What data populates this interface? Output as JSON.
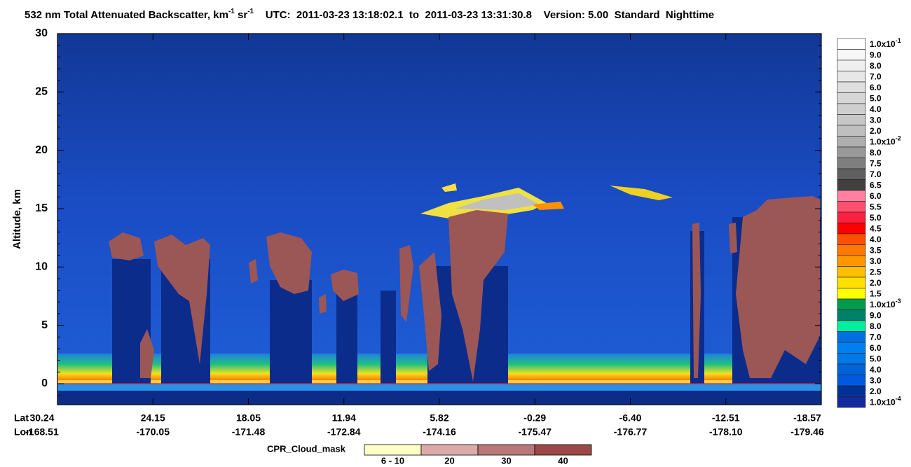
{
  "chart_data": {
    "type": "curtain",
    "title_segments": [
      {
        "text": "532 nm Total Attenuated Backscatter, km",
        "sup": false
      },
      {
        "text": "-1",
        "sup": true
      },
      {
        "text": " sr",
        "sup": false
      },
      {
        "text": "-1",
        "sup": true
      },
      {
        "text": "    UTC:  2011-03-23 13:18:02.1  to  2011-03-23 13:31:30.8    Version: 5.00  Standard  Nighttime",
        "sup": false
      }
    ],
    "ylabel": "Altitude, km",
    "ylim": [
      -1.8,
      30
    ],
    "yticks": [
      0,
      5,
      10,
      15,
      20,
      25,
      30
    ],
    "lat_title": "Lat",
    "lon_title": "Lon",
    "lat_labels": [
      "30.24",
      "24.15",
      "18.05",
      "11.94",
      "5.82",
      "-0.29",
      "-6.40",
      "-12.51",
      "-18.57"
    ],
    "lon_labels": [
      "-168.51",
      "-170.05",
      "-171.48",
      "-172.84",
      "-174.16",
      "-175.47",
      "-176.77",
      "-178.10",
      "-179.46"
    ],
    "colorbar": {
      "labels": [
        {
          "text": "1.0x10",
          "sup": "-1"
        },
        {
          "text": "9.0"
        },
        {
          "text": "8.0"
        },
        {
          "text": "7.0"
        },
        {
          "text": "6.0"
        },
        {
          "text": "5.0"
        },
        {
          "text": "4.0"
        },
        {
          "text": "3.0"
        },
        {
          "text": "2.0"
        },
        {
          "text": "1.0x10",
          "sup": "-2"
        },
        {
          "text": "8.0"
        },
        {
          "text": "7.5"
        },
        {
          "text": "7.0"
        },
        {
          "text": "6.5"
        },
        {
          "text": "6.0"
        },
        {
          "text": "5.5"
        },
        {
          "text": "5.0"
        },
        {
          "text": "4.5"
        },
        {
          "text": "4.0"
        },
        {
          "text": "3.5"
        },
        {
          "text": "3.0"
        },
        {
          "text": "2.5"
        },
        {
          "text": "2.0"
        },
        {
          "text": "1.5"
        },
        {
          "text": "1.0x10",
          "sup": "-3"
        },
        {
          "text": "9.0"
        },
        {
          "text": "8.0"
        },
        {
          "text": "7.0"
        },
        {
          "text": "6.0"
        },
        {
          "text": "5.0"
        },
        {
          "text": "4.0"
        },
        {
          "text": "3.0"
        },
        {
          "text": "2.0"
        },
        {
          "text": "1.0x10",
          "sup": "-4"
        }
      ],
      "colors": [
        "#ffffff",
        "#f7f7f7",
        "#efefef",
        "#e7e7e7",
        "#dfdfdf",
        "#d7d7d7",
        "#cfcfcf",
        "#c7c7c7",
        "#bfbfbf",
        "#afafaf",
        "#999999",
        "#7f7f7f",
        "#5f5f5f",
        "#404040",
        "#ff80a0",
        "#ff5070",
        "#ff2040",
        "#ff0000",
        "#ff5000",
        "#ff7800",
        "#ff9600",
        "#ffbe00",
        "#ffe000",
        "#ffff00",
        "#009b4e",
        "#00806a",
        "#00f0a0",
        "#0070e0",
        "#0080f0",
        "#0078e8",
        "#0064d8",
        "#005ae0",
        "#003296",
        "#1428a0"
      ]
    },
    "cpr_legend": {
      "title": "CPR_Cloud_mask",
      "categories": [
        "6 - 10",
        "20",
        "30",
        "40"
      ],
      "colors": [
        "#ffffc8",
        "#dcaaa8",
        "#b87878",
        "#9a4848"
      ]
    }
  }
}
